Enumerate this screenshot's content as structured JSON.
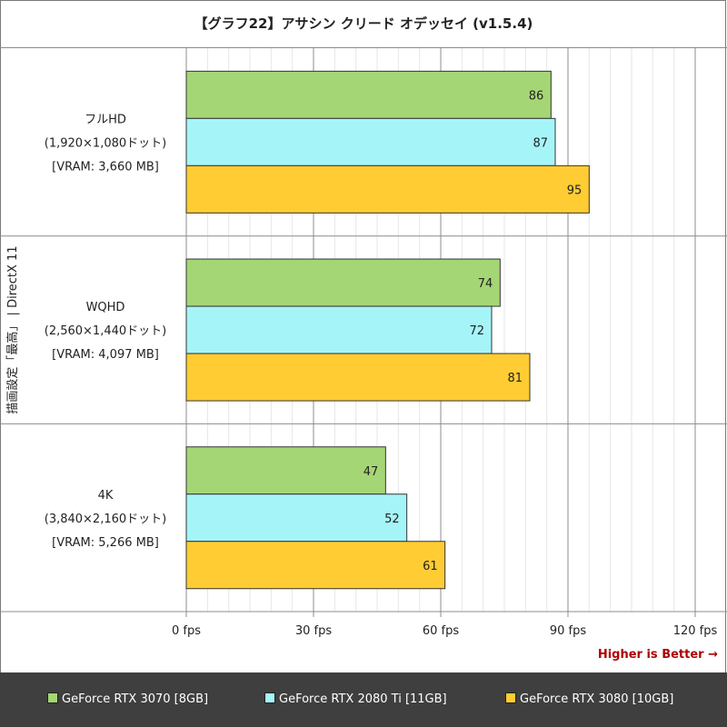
{
  "title": "【グラフ22】アサシン クリード オデッセイ (v1.5.4)",
  "better_note": "Higher is Better →",
  "colors": {
    "series": [
      "#a5d675",
      "#a5f5f8",
      "#ffcc33"
    ],
    "grid_major": "#8c8c8c",
    "grid_minor": "#e6e6e6"
  },
  "legend": [
    {
      "label": "GeForce RTX 3070 [8GB]"
    },
    {
      "label": "GeForce RTX 2080 Ti [11GB]"
    },
    {
      "label": "GeForce RTX 3080 [10GB]"
    }
  ],
  "chart_data": {
    "type": "bar",
    "orientation": "horizontal",
    "title": "【グラフ22】アサシン クリード オデッセイ (v1.5.4)",
    "ylabel": "描画設定「最高」 | DirectX 11",
    "xlim": [
      0,
      120
    ],
    "x_ticks": [
      "0 fps",
      "30 fps",
      "60 fps",
      "90 fps",
      "120 fps"
    ],
    "x_tick_values": [
      0,
      30,
      60,
      90,
      120
    ],
    "grid": true,
    "legend_position": "bottom",
    "categories": [
      [
        "フルHD",
        "(1,920×1,080ドット)",
        "[VRAM: 3,660 MB]"
      ],
      [
        "WQHD",
        "(2,560×1,440ドット)",
        "[VRAM: 4,097 MB]"
      ],
      [
        "4K",
        "(3,840×2,160ドット)",
        "[VRAM: 5,266 MB]"
      ]
    ],
    "series": [
      {
        "name": "GeForce RTX 3070 [8GB]",
        "values": [
          86,
          74,
          47
        ]
      },
      {
        "name": "GeForce RTX 2080 Ti [11GB]",
        "values": [
          87,
          72,
          52
        ]
      },
      {
        "name": "GeForce RTX 3080 [10GB]",
        "values": [
          95,
          81,
          61
        ]
      }
    ]
  }
}
